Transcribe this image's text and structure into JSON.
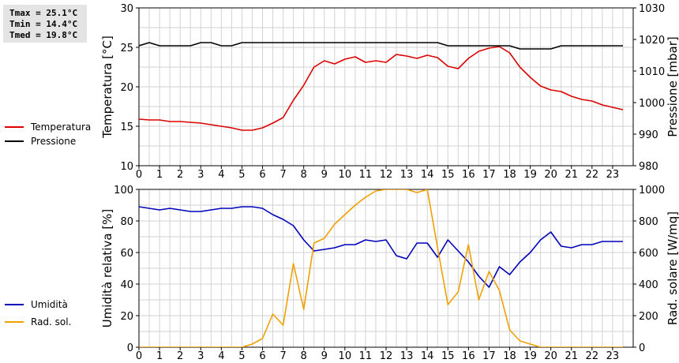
{
  "stats": {
    "tmax": "Tmax = 25.1°C",
    "tmin": "Tmin = 14.4°C",
    "tmed": "Tmed = 19.8°C"
  },
  "chart_data": [
    {
      "type": "line",
      "ylabel": "Temperatura [°C]",
      "ylabel_right": "Pressione [mbar]",
      "ylim": [
        10,
        30
      ],
      "ylim_right": [
        980,
        1030
      ],
      "xlim": [
        0,
        24
      ],
      "x_ticks": [
        0,
        1,
        2,
        3,
        4,
        5,
        6,
        7,
        8,
        9,
        10,
        11,
        12,
        13,
        14,
        15,
        16,
        17,
        18,
        19,
        20,
        21,
        22,
        23
      ],
      "y_ticks": [
        10,
        15,
        20,
        25,
        30
      ],
      "y_ticks_right": [
        980,
        990,
        1000,
        1010,
        1020,
        1030
      ],
      "grid": true,
      "legend_position": "left-outside",
      "series": [
        {
          "name": "Temperatura",
          "axis": "left",
          "color": "#dd0000",
          "x": [
            0,
            0.5,
            1,
            1.5,
            2,
            2.5,
            3,
            3.5,
            4,
            4.5,
            5,
            5.5,
            6,
            6.5,
            7,
            7.5,
            8,
            8.5,
            9,
            9.5,
            10,
            10.5,
            11,
            11.5,
            12,
            12.5,
            13,
            13.5,
            14,
            14.5,
            15,
            15.5,
            16,
            16.5,
            17,
            17.5,
            18,
            18.5,
            19,
            19.5,
            20,
            20.5,
            21,
            21.5,
            22,
            22.5,
            23,
            23.5
          ],
          "y": [
            15.9,
            15.8,
            15.8,
            15.6,
            15.6,
            15.5,
            15.4,
            15.2,
            15.0,
            14.8,
            14.5,
            14.5,
            14.8,
            15.4,
            16.1,
            18.3,
            20.2,
            22.5,
            23.3,
            22.9,
            23.5,
            23.8,
            23.1,
            23.3,
            23.1,
            24.1,
            23.9,
            23.6,
            24.0,
            23.7,
            22.6,
            22.3,
            23.6,
            24.5,
            24.9,
            25.1,
            24.3,
            22.5,
            21.2,
            20.1,
            19.6,
            19.4,
            18.8,
            18.4,
            18.2,
            17.7,
            17.4,
            17.1
          ]
        },
        {
          "name": "Pressione",
          "axis": "right",
          "color": "#000000",
          "x": [
            0,
            0.5,
            1,
            1.5,
            2,
            2.5,
            3,
            3.5,
            4,
            4.5,
            5,
            5.5,
            6,
            6.5,
            7,
            7.5,
            8,
            8.5,
            9,
            9.5,
            10,
            10.5,
            11,
            11.5,
            12,
            12.5,
            13,
            13.5,
            14,
            14.5,
            15,
            15.5,
            16,
            16.5,
            17,
            17.5,
            18,
            18.5,
            19,
            19.5,
            20,
            20.5,
            21,
            21.5,
            22,
            22.5,
            23,
            23.5
          ],
          "y": [
            1018,
            1019,
            1018,
            1018,
            1018,
            1018,
            1019,
            1019,
            1018,
            1018,
            1019,
            1019,
            1019,
            1019,
            1019,
            1019,
            1019,
            1019,
            1019,
            1019,
            1019,
            1019,
            1019,
            1019,
            1019,
            1019,
            1019,
            1019,
            1019,
            1019,
            1018,
            1018,
            1018,
            1018,
            1018,
            1018,
            1018,
            1017,
            1017,
            1017,
            1017,
            1018,
            1018,
            1018,
            1018,
            1018,
            1018,
            1018
          ]
        }
      ]
    },
    {
      "type": "line",
      "ylabel": "Umidità relativa [%]",
      "ylabel_right": "Rad. solare [W/mq]",
      "ylim": [
        0,
        100
      ],
      "ylim_right": [
        0,
        1000
      ],
      "xlim": [
        0,
        24
      ],
      "x_ticks": [
        0,
        1,
        2,
        3,
        4,
        5,
        6,
        7,
        8,
        9,
        10,
        11,
        12,
        13,
        14,
        15,
        16,
        17,
        18,
        19,
        20,
        21,
        22,
        23
      ],
      "y_ticks": [
        0,
        20,
        40,
        60,
        80,
        100
      ],
      "y_ticks_right": [
        0,
        200,
        400,
        600,
        800,
        1000
      ],
      "grid": true,
      "legend_position": "left-outside",
      "series": [
        {
          "name": "Umidità",
          "axis": "left",
          "color": "#0000bb",
          "x": [
            0,
            0.5,
            1,
            1.5,
            2,
            2.5,
            3,
            3.5,
            4,
            4.5,
            5,
            5.5,
            6,
            6.5,
            7,
            7.5,
            8,
            8.5,
            9,
            9.5,
            10,
            10.5,
            11,
            11.5,
            12,
            12.5,
            13,
            13.5,
            14,
            14.5,
            15,
            15.5,
            16,
            16.5,
            17,
            17.5,
            18,
            18.5,
            19,
            19.5,
            20,
            20.5,
            21,
            21.5,
            22,
            22.5,
            23,
            23.5
          ],
          "y": [
            89,
            88,
            87,
            88,
            87,
            86,
            86,
            87,
            88,
            88,
            89,
            89,
            88,
            84,
            81,
            77,
            68,
            61,
            62,
            63,
            65,
            65,
            68,
            67,
            68,
            58,
            56,
            66,
            66,
            57,
            68,
            61,
            54,
            45,
            38,
            51,
            46,
            54,
            60,
            68,
            73,
            64,
            63,
            65,
            65,
            67,
            67,
            67
          ]
        },
        {
          "name": "Rad. sol.",
          "axis": "right",
          "color": "#f0a000",
          "x": [
            0,
            0.5,
            1,
            1.5,
            2,
            2.5,
            3,
            3.5,
            4,
            4.5,
            5,
            5.5,
            6,
            6.5,
            7,
            7.5,
            8,
            8.5,
            9,
            9.5,
            10,
            10.5,
            11,
            11.5,
            12,
            12.5,
            13,
            13.5,
            14,
            14.5,
            15,
            15.5,
            16,
            16.5,
            17,
            17.5,
            18,
            18.5,
            19,
            19.5,
            20,
            20.5,
            21,
            21.5,
            22,
            22.5,
            23,
            23.5
          ],
          "y": [
            0,
            0,
            0,
            0,
            0,
            0,
            0,
            0,
            0,
            0,
            0,
            20,
            55,
            210,
            140,
            530,
            240,
            660,
            690,
            780,
            840,
            900,
            950,
            990,
            1000,
            1000,
            1000,
            980,
            1000,
            630,
            270,
            350,
            650,
            300,
            480,
            360,
            110,
            40,
            20,
            0,
            0,
            0,
            0,
            0,
            0,
            0,
            0,
            0
          ]
        }
      ]
    }
  ]
}
